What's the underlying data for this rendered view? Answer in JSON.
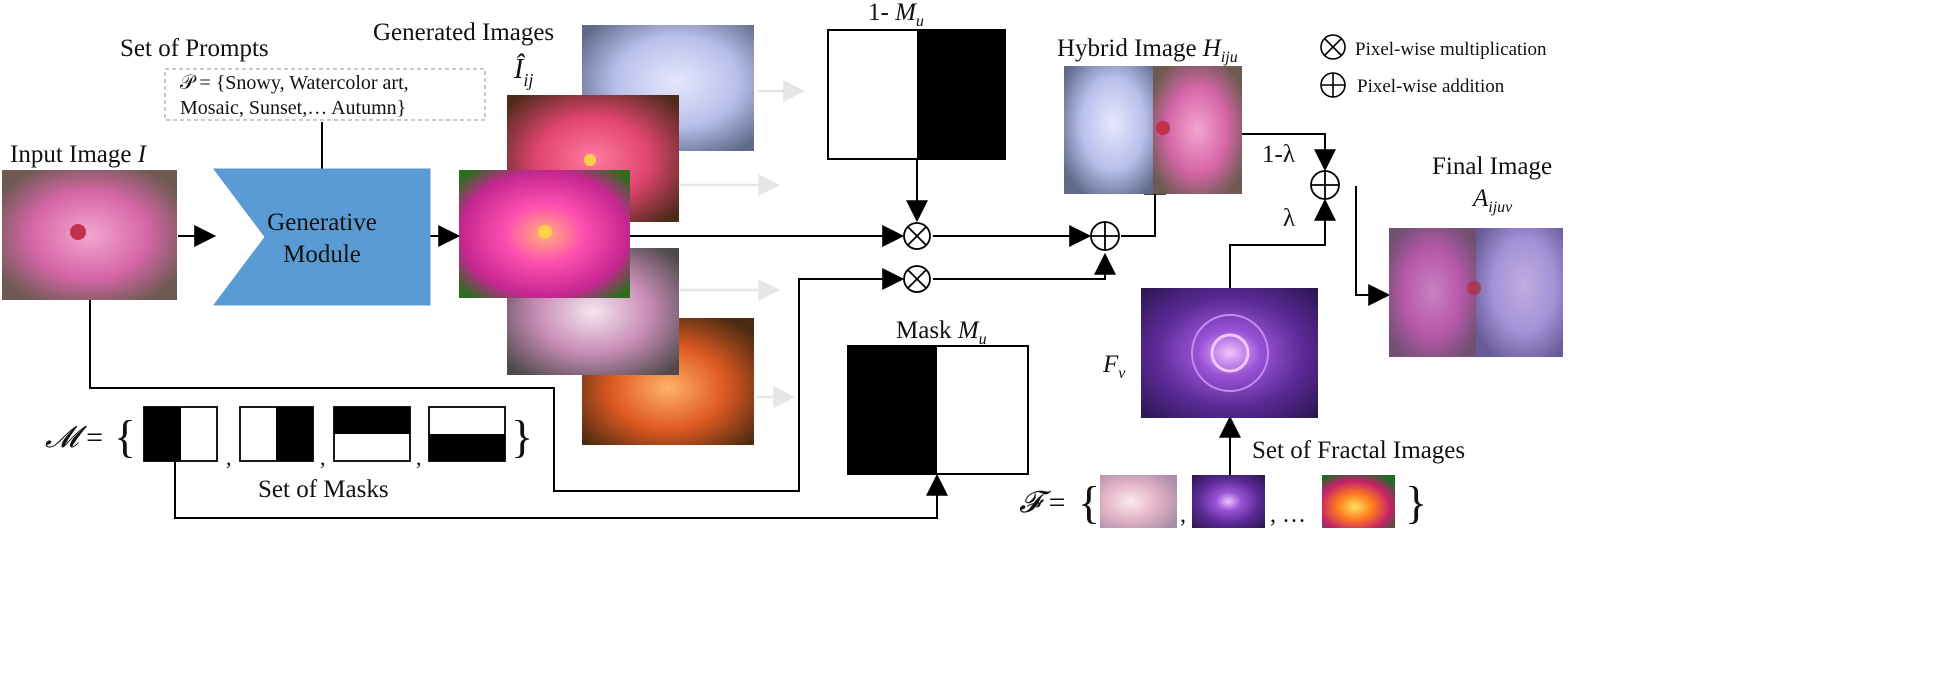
{
  "labels": {
    "set_of_prompts": "Set of Prompts",
    "prompt_set_line1": "𝒫 = {Snowy, Watercolor art,",
    "prompt_set_line2": "Mosaic, Sunset,… Autumn}",
    "input_image": "Input Image",
    "input_image_symbol": "I",
    "generative_module_line1": "Generative",
    "generative_module_line2": "Module",
    "generated_images": "Generated Images",
    "generated_symbol": "Î",
    "generated_sub": "ij",
    "one_minus_mask_prefix": "1-",
    "mask_symbol": "M",
    "mask_sub": "u",
    "mask_label_prefix": "Mask",
    "hybrid_image": "Hybrid Image",
    "hybrid_symbol": "H",
    "hybrid_sub": "iju",
    "legend_mult": "Pixel-wise multiplication",
    "legend_add": "Pixel-wise addition",
    "one_minus_lambda": "1-λ",
    "lambda": "λ",
    "final_image": "Final Image",
    "final_symbol": "A",
    "final_sub": "ijuv",
    "fractal_symbol": "F",
    "fractal_sub": "v",
    "set_of_fractals": "Set of Fractal Images",
    "set_of_masks": "Set of Masks",
    "mask_set_symbol": "𝓜",
    "fractal_set_symbol": "𝓕",
    "equals": "=",
    "open_brace": "{",
    "close_brace": "}",
    "comma": ",",
    "ellipsis": ", …"
  },
  "colors": {
    "generative_module": "#5b9bd5",
    "flower_pink": "#d766a8",
    "fractal_purple": "#7a3fb0"
  }
}
